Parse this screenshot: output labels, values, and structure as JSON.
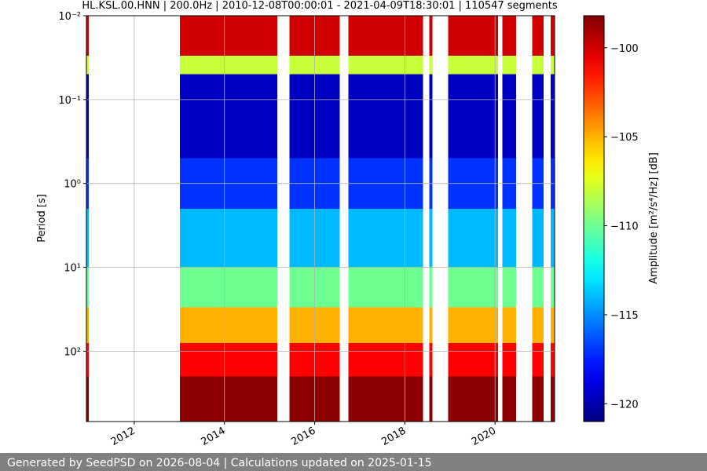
{
  "chart_data": {
    "type": "spectrogram",
    "title": "HL.KSL.00.HNN | 200.0Hz | 2010-12-08T00:00:01 - 2021-04-09T18:30:01 | 110547 segments",
    "y_label": "Period [s]",
    "colorbar_label": "Amplitude [m²/s⁴/Hz] [dB]",
    "xlim": [
      2010.94,
      2021.32
    ],
    "xticks": [
      2012,
      2014,
      2016,
      2018,
      2020
    ],
    "ylim": [
      0.01,
      690
    ],
    "log_y": true,
    "yticks": [
      {
        "value": 0.01,
        "label": "10⁻²"
      },
      {
        "value": 0.1,
        "label": "10⁻¹"
      },
      {
        "value": 1,
        "label": "10⁰"
      },
      {
        "value": 10,
        "label": "10¹"
      },
      {
        "value": 100,
        "label": "10²"
      }
    ],
    "grid": true,
    "clim": [
      -121,
      -98.2
    ],
    "cticks": [
      {
        "value": -100,
        "label": "−100"
      },
      {
        "value": -105,
        "label": "−105"
      },
      {
        "value": -110,
        "label": "−110"
      },
      {
        "value": -115,
        "label": "−115"
      },
      {
        "value": -120,
        "label": "−120"
      }
    ],
    "colormap": "jet",
    "segments": [
      [
        2010.94,
        2010.99
      ],
      [
        2013.01,
        2015.17
      ],
      [
        2015.44,
        2016.56
      ],
      [
        2016.75,
        2018.4
      ],
      [
        2018.54,
        2018.61
      ],
      [
        2018.96,
        2020.07
      ],
      [
        2020.16,
        2020.47
      ],
      [
        2020.82,
        2021.08
      ],
      [
        2021.23,
        2021.32
      ]
    ],
    "period_bins": [
      0.01,
      0.03,
      0.05,
      0.5,
      2,
      10,
      30,
      80,
      200,
      690
    ],
    "amplitude": [
      -100,
      -108,
      -119.5,
      -117,
      -114,
      -110,
      -105,
      -101,
      -98.5
    ]
  },
  "footer": "Generated by SeedPSD on 2026-08-04 | Calculations updated on 2025-01-15"
}
